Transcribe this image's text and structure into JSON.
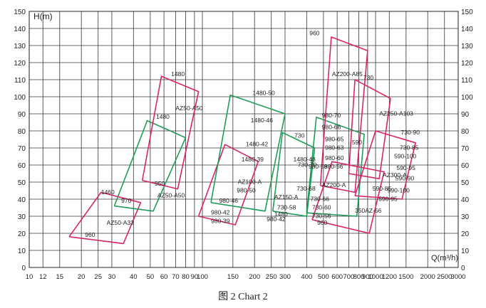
{
  "caption": "图 2 Chart 2",
  "chart_data": {
    "type": "line",
    "title": "",
    "xlabel": "Q(m³/h)",
    "ylabel": "H(m)",
    "xscale": "log",
    "xlim": [
      10,
      3000
    ],
    "ylim": [
      0,
      150
    ],
    "x_ticks": [
      10,
      12,
      15,
      20,
      25,
      30,
      40,
      50,
      60,
      70,
      80,
      90,
      100,
      150,
      200,
      250,
      300,
      400,
      500,
      600,
      700,
      800,
      900,
      1000,
      1200,
      1500,
      2000,
      2500,
      3000
    ],
    "x_tick_labels": [
      "10",
      "12",
      "15",
      "20",
      "25",
      "30",
      "40",
      "50",
      "60",
      "70",
      "80",
      "90",
      "100",
      "150",
      "200",
      "250",
      "300",
      "400",
      "500",
      "600",
      "700",
      "800",
      "900",
      "1000",
      "1200",
      "1500",
      "2000",
      "2500",
      "3000"
    ],
    "y_ticks": [
      0,
      10,
      20,
      30,
      40,
      50,
      60,
      70,
      80,
      90,
      100,
      110,
      120,
      130,
      140,
      150
    ],
    "grid": true,
    "colors": {
      "red": "#d8246a",
      "green": "#1f9d57",
      "grid": "#333333",
      "text": "#222222"
    },
    "series": [
      {
        "name": "AZ50-A33",
        "color": "red",
        "points": [
          [
            17,
            18
          ],
          [
            26,
            44
          ],
          [
            44,
            38
          ],
          [
            35,
            14
          ],
          [
            17,
            18
          ]
        ]
      },
      {
        "name": "AZ50-A50",
        "color": "green",
        "points": [
          [
            31,
            36
          ],
          [
            48,
            86
          ],
          [
            80,
            76
          ],
          [
            52,
            33
          ],
          [
            31,
            36
          ]
        ]
      },
      {
        "name": "AZ50-A50",
        "color": "red",
        "points": [
          [
            45,
            51
          ],
          [
            58,
            112
          ],
          [
            95,
            103
          ],
          [
            72,
            46
          ],
          [
            45,
            51
          ]
        ]
      },
      {
        "name": "AZ100-A",
        "color": "red",
        "points": [
          [
            95,
            30
          ],
          [
            135,
            72
          ],
          [
            210,
            62
          ],
          [
            155,
            25
          ],
          [
            95,
            30
          ]
        ]
      },
      {
        "name": "AZ100-A",
        "color": "green",
        "points": [
          [
            112,
            38
          ],
          [
            145,
            101
          ],
          [
            300,
            90
          ],
          [
            230,
            33
          ],
          [
            112,
            38
          ]
        ]
      },
      {
        "name": "AZ150-A",
        "color": "green",
        "points": [
          [
            255,
            33
          ],
          [
            290,
            79
          ],
          [
            445,
            70
          ],
          [
            400,
            30
          ],
          [
            255,
            33
          ]
        ]
      },
      {
        "name": "AZ200-A",
        "color": "green",
        "points": [
          [
            400,
            32
          ],
          [
            455,
            88
          ],
          [
            860,
            78
          ],
          [
            780,
            30
          ],
          [
            400,
            32
          ]
        ]
      },
      {
        "name": "AZ200-A85",
        "color": "red",
        "points": [
          [
            480,
            48
          ],
          [
            555,
            135
          ],
          [
            900,
            127
          ],
          [
            760,
            44
          ],
          [
            480,
            48
          ]
        ]
      },
      {
        "name": "AZ250-A103",
        "color": "red",
        "points": [
          [
            700,
            55
          ],
          [
            760,
            110
          ],
          [
            1220,
            99
          ],
          [
            1050,
            52
          ],
          [
            700,
            55
          ]
        ]
      },
      {
        "name": "AZ300-A",
        "color": "red",
        "points": [
          [
            760,
            42
          ],
          [
            1000,
            80
          ],
          [
            1700,
            73
          ],
          [
            1420,
            40
          ],
          [
            760,
            42
          ]
        ]
      },
      {
        "name": "350AZ-56",
        "color": "red",
        "points": [
          [
            430,
            28
          ],
          [
            560,
            62
          ],
          [
            1120,
            56
          ],
          [
            920,
            20
          ],
          [
            430,
            28
          ]
        ]
      }
    ],
    "labels": [
      {
        "text": "960",
        "x": 21,
        "y": 18
      },
      {
        "text": "1460",
        "x": 26,
        "y": 43
      },
      {
        "text": "970",
        "x": 34,
        "y": 38
      },
      {
        "text": "AZ50-A33",
        "x": 28,
        "y": 25
      },
      {
        "text": "950",
        "x": 53,
        "y": 48
      },
      {
        "text": "AZ50-A50",
        "x": 55,
        "y": 41
      },
      {
        "text": "AZ50-A50",
        "x": 70,
        "y": 92
      },
      {
        "text": "1480",
        "x": 66,
        "y": 112
      },
      {
        "text": "1480",
        "x": 54,
        "y": 87
      },
      {
        "text": "1480-50",
        "x": 195,
        "y": 101
      },
      {
        "text": "1480-46",
        "x": 190,
        "y": 85
      },
      {
        "text": "1480-42",
        "x": 178,
        "y": 71
      },
      {
        "text": "1480-39",
        "x": 168,
        "y": 62
      },
      {
        "text": "AZ100-A",
        "x": 160,
        "y": 49
      },
      {
        "text": "980-50",
        "x": 158,
        "y": 44
      },
      {
        "text": "980-46",
        "x": 125,
        "y": 38
      },
      {
        "text": "980-42",
        "x": 112,
        "y": 31
      },
      {
        "text": "980-39",
        "x": 112,
        "y": 26
      },
      {
        "text": "960",
        "x": 415,
        "y": 136
      },
      {
        "text": "AZ200-A85",
        "x": 560,
        "y": 112
      },
      {
        "text": "730",
        "x": 850,
        "y": 110
      },
      {
        "text": "AZ250-A103",
        "x": 1050,
        "y": 89
      },
      {
        "text": "980-70",
        "x": 490,
        "y": 88
      },
      {
        "text": "980-66",
        "x": 490,
        "y": 81
      },
      {
        "text": "730-90",
        "x": 1400,
        "y": 78
      },
      {
        "text": "730",
        "x": 340,
        "y": 76
      },
      {
        "text": "980-65",
        "x": 510,
        "y": 74
      },
      {
        "text": "590",
        "x": 730,
        "y": 72
      },
      {
        "text": "980-63",
        "x": 510,
        "y": 69
      },
      {
        "text": "730-85",
        "x": 1380,
        "y": 69
      },
      {
        "text": "1480-48",
        "x": 335,
        "y": 62
      },
      {
        "text": "980-60",
        "x": 510,
        "y": 63
      },
      {
        "text": "590-100",
        "x": 1280,
        "y": 64
      },
      {
        "text": "980-58",
        "x": 410,
        "y": 58
      },
      {
        "text": "980-56",
        "x": 505,
        "y": 58
      },
      {
        "text": "590-95",
        "x": 1320,
        "y": 57
      },
      {
        "text": "730-70",
        "x": 355,
        "y": 59
      },
      {
        "text": "AZ300-A",
        "x": 1100,
        "y": 53
      },
      {
        "text": "590-90",
        "x": 1300,
        "y": 51
      },
      {
        "text": "AZ200-A",
        "x": 490,
        "y": 47
      },
      {
        "text": "730-68",
        "x": 350,
        "y": 45
      },
      {
        "text": "590-85",
        "x": 960,
        "y": 45
      },
      {
        "text": "590-100",
        "x": 1170,
        "y": 44
      },
      {
        "text": "AZ150-A",
        "x": 260,
        "y": 40
      },
      {
        "text": "730-66",
        "x": 420,
        "y": 39
      },
      {
        "text": "590-95",
        "x": 1040,
        "y": 39
      },
      {
        "text": "730-58",
        "x": 270,
        "y": 34
      },
      {
        "text": "730-60",
        "x": 430,
        "y": 34
      },
      {
        "text": "350AZ-56",
        "x": 760,
        "y": 32
      },
      {
        "text": "1480",
        "x": 260,
        "y": 30
      },
      {
        "text": "730-56",
        "x": 430,
        "y": 29
      },
      {
        "text": "980-42",
        "x": 235,
        "y": 27
      },
      {
        "text": "960",
        "x": 460,
        "y": 25
      }
    ]
  }
}
